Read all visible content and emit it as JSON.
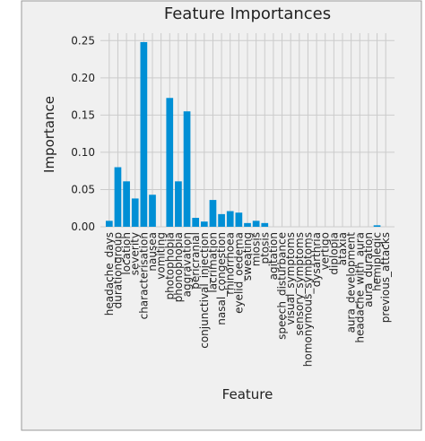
{
  "chart_data": {
    "type": "bar",
    "title": "Feature Importances",
    "x_label": "Feature",
    "y_label": "Importance",
    "categories": [
      "headache_days",
      "durationgroup",
      "location",
      "severity",
      "characterisation",
      "nausea",
      "vomiting",
      "photophobia",
      "phonophobia",
      "aggravation",
      "pericranial",
      "conjunctival_injection",
      "lacrimation",
      "nasal_congestion",
      "rhinorrhoea",
      "eyelid_oedema",
      "sweating",
      "miosis",
      "ptosis",
      "agitation",
      "speech_disturbance",
      "visual_symptoms",
      "sensory_symptoms",
      "homonymous_symptoms",
      "dysarthria",
      "vertigo",
      "diplopia",
      "ataxia",
      "aura_development",
      "headache_with_aura",
      "aura_duration",
      "hemiplegic",
      "previous_attacks"
    ],
    "values": [
      0.008,
      0.08,
      0.061,
      0.038,
      0.248,
      0.043,
      0,
      0.173,
      0.061,
      0.155,
      0.012,
      0.007,
      0.036,
      0.017,
      0.021,
      0.019,
      0.005,
      0.008,
      0.005,
      0,
      0,
      0,
      0,
      0,
      0,
      0,
      0,
      0,
      0,
      0,
      0,
      0.002,
      0
    ],
    "color": "#008fd5",
    "ylim": [
      0,
      0.26
    ],
    "yticks": [
      {
        "value": 0,
        "label": "0.00"
      },
      {
        "value": 0.05,
        "label": "0.05"
      },
      {
        "value": 0.1,
        "label": "0.10"
      },
      {
        "value": 0.15,
        "label": "0.15"
      },
      {
        "value": 0.2,
        "label": "0.20"
      },
      {
        "value": 0.25,
        "label": "0.25"
      }
    ],
    "grid": true
  }
}
